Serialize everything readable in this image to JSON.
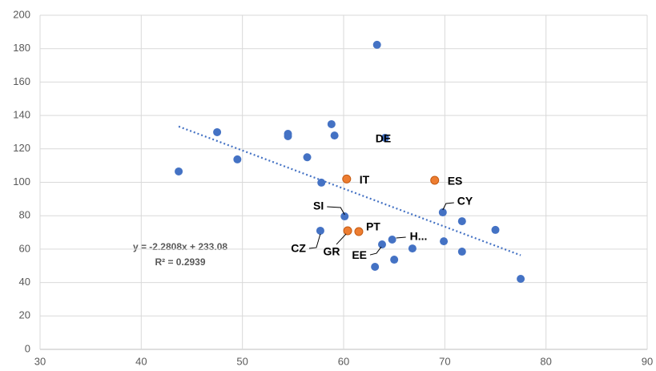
{
  "chart_data": {
    "type": "scatter",
    "xlim": [
      30,
      90
    ],
    "xticks": [
      30,
      40,
      50,
      60,
      70,
      80,
      90
    ],
    "ylim": [
      0,
      200
    ],
    "yticks": [
      0,
      20,
      40,
      60,
      80,
      100,
      120,
      140,
      160,
      180,
      200
    ],
    "grid": true,
    "series": [
      {
        "color": "#4472c4",
        "x": [
          43.7,
          47.5,
          49.5,
          54.5,
          54.5,
          56.4,
          57.8,
          58.8,
          59.1,
          63.3,
          64.1,
          60.1,
          69.8,
          71.7,
          75.0,
          57.7,
          64.8,
          63.8,
          66.8,
          69.9,
          71.7,
          65.0,
          63.1,
          77.5
        ],
        "values": [
          106.5,
          130,
          113.7,
          129,
          127.6,
          115,
          99.8,
          134.8,
          128,
          182.3,
          126.6,
          79.6,
          82,
          76.7,
          71.5,
          71,
          65.7,
          62.8,
          60.4,
          64.7,
          58.5,
          53.7,
          49.4,
          42.2
        ],
        "labels": [
          null,
          null,
          null,
          null,
          null,
          null,
          null,
          null,
          null,
          null,
          "DE",
          "SI",
          "CY",
          null,
          null,
          "CZ",
          "H...",
          "EE",
          null,
          null,
          null,
          null,
          null,
          null
        ]
      },
      {
        "color": "#ed7d31",
        "x": [
          60.3,
          69.0,
          60.4,
          61.5
        ],
        "values": [
          102,
          101.2,
          71,
          70.5
        ],
        "labels": [
          "IT",
          "ES",
          "GR",
          "PT"
        ]
      }
    ],
    "trendline": {
      "color": "#4472c4",
      "x": [
        43.7,
        77.5
      ],
      "values": [
        133.41,
        56.32
      ],
      "equation": "y = -2.2808x + 233.08",
      "r_squared": "R² = 0.2939"
    }
  }
}
